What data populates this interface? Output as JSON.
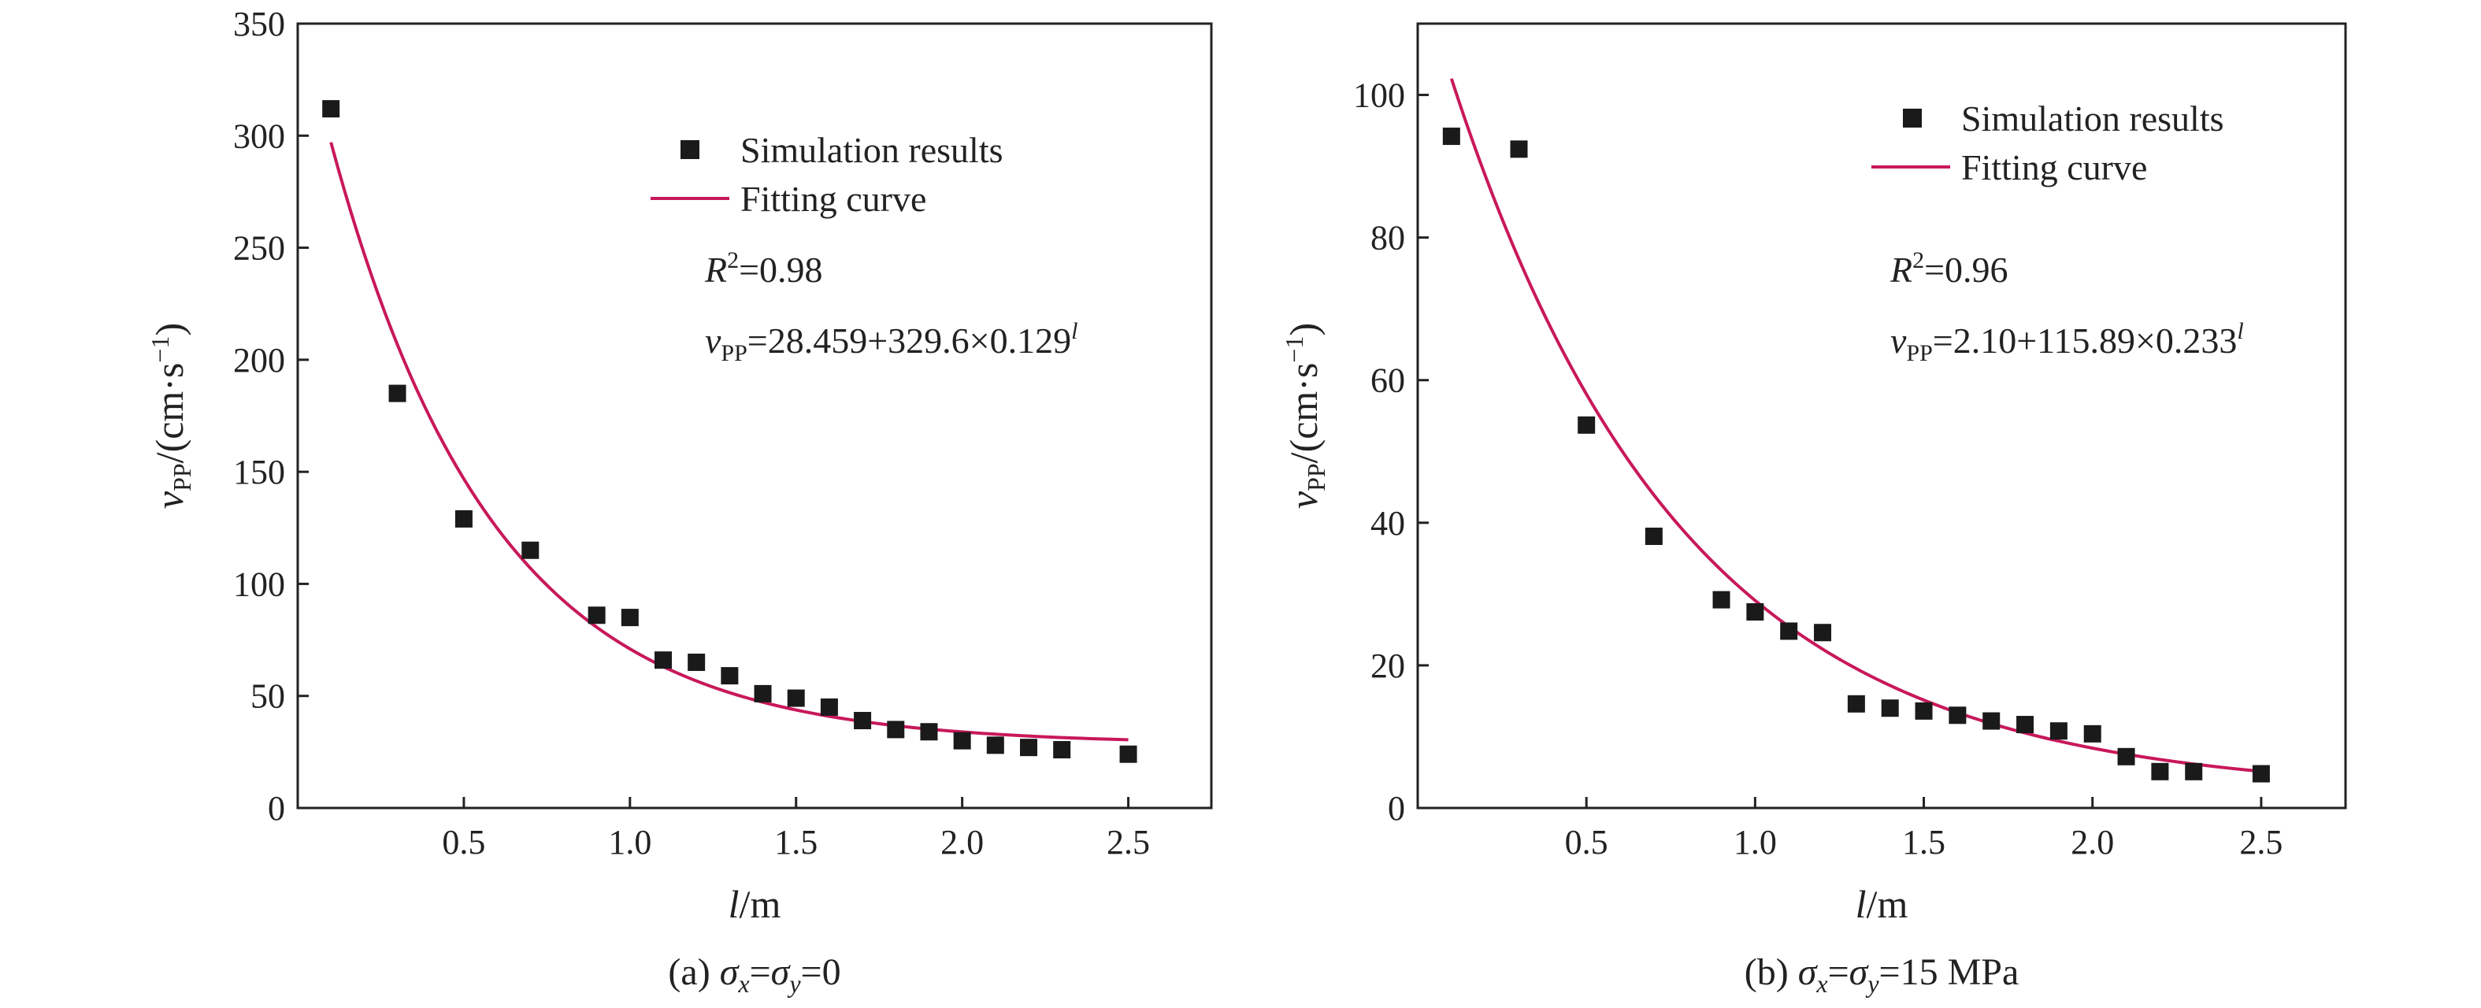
{
  "chart_data": [
    {
      "type": "scatter",
      "id": "a",
      "xlabel_var": "l",
      "xlabel_unit": "/m",
      "ylabel_var": "v",
      "ylabel_sub": "PP",
      "ylabel_unit": "/(cm·s",
      "ylabel_exp": "−1",
      "ylabel_close": ")",
      "xlim": [
        0,
        2.75
      ],
      "ylim": [
        0,
        350
      ],
      "xticks": [
        0.5,
        1.0,
        1.5,
        2.0,
        2.5
      ],
      "xtick_labels": [
        "0.5",
        "1.0",
        "1.5",
        "2.0",
        "2.5"
      ],
      "yticks": [
        0,
        50,
        100,
        150,
        200,
        250,
        300,
        350
      ],
      "ytick_labels": [
        "0",
        "50",
        "100",
        "150",
        "200",
        "250",
        "300",
        "350"
      ],
      "series": [
        {
          "name": "Simulation results",
          "kind": "points",
          "x": [
            0.1,
            0.3,
            0.5,
            0.7,
            0.9,
            1.0,
            1.1,
            1.2,
            1.3,
            1.4,
            1.5,
            1.6,
            1.7,
            1.8,
            1.9,
            2.0,
            2.1,
            2.2,
            2.3,
            2.5
          ],
          "y": [
            312,
            185,
            129,
            115,
            86,
            85,
            66,
            65,
            59,
            51,
            49,
            45,
            39,
            35,
            34,
            30,
            28,
            27,
            26,
            24
          ]
        },
        {
          "name": "Fitting curve",
          "kind": "line",
          "model": {
            "a": 28.459,
            "b": 329.6,
            "c": 0.129
          },
          "x_range": [
            0.1,
            2.5
          ]
        }
      ],
      "legend": {
        "points_label": "Simulation results",
        "line_label": "Fitting curve",
        "placement": "top-right"
      },
      "r2": {
        "var": "R",
        "exp": "2",
        "value": "=0.98"
      },
      "equation": {
        "var": "v",
        "sub": "PP",
        "rhs": "=28.459+329.6×0.129",
        "exp": "l"
      },
      "caption": {
        "prefix": "(a) ",
        "s1": "σ",
        "sub1": "x",
        "eq1": "=",
        "s2": "σ",
        "sub2": "y",
        "rest": "=0"
      }
    },
    {
      "type": "scatter",
      "id": "b",
      "xlabel_var": "l",
      "xlabel_unit": "/m",
      "ylabel_var": "v",
      "ylabel_sub": "PP",
      "ylabel_unit": "/(cm·s",
      "ylabel_exp": "−1",
      "ylabel_close": ")",
      "xlim": [
        0,
        2.75
      ],
      "ylim": [
        0,
        110
      ],
      "xticks": [
        0.5,
        1.0,
        1.5,
        2.0,
        2.5
      ],
      "xtick_labels": [
        "0.5",
        "1.0",
        "1.5",
        "2.0",
        "2.5"
      ],
      "yticks": [
        0,
        20,
        40,
        60,
        80,
        100
      ],
      "ytick_labels": [
        "0",
        "20",
        "40",
        "60",
        "80",
        "100"
      ],
      "series": [
        {
          "name": "Simulation results",
          "kind": "points",
          "x": [
            0.1,
            0.3,
            0.5,
            0.7,
            0.9,
            1.0,
            1.1,
            1.2,
            1.3,
            1.4,
            1.5,
            1.6,
            1.7,
            1.8,
            1.9,
            2.0,
            2.1,
            2.2,
            2.3,
            2.5
          ],
          "y": [
            94.2,
            92.4,
            53.7,
            38.1,
            29.2,
            27.5,
            24.8,
            24.6,
            14.6,
            14.0,
            13.6,
            13.0,
            12.2,
            11.7,
            10.8,
            10.4,
            7.2,
            5.1,
            5.1,
            4.8
          ]
        },
        {
          "name": "Fitting curve",
          "kind": "line",
          "model": {
            "a": 2.1,
            "b": 115.89,
            "c": 0.233
          },
          "x_range": [
            0.1,
            2.5
          ]
        }
      ],
      "legend": {
        "points_label": "Simulation results",
        "line_label": "Fitting curve",
        "placement": "top-right"
      },
      "r2": {
        "var": "R",
        "exp": "2",
        "value": "=0.96"
      },
      "equation": {
        "var": "v",
        "sub": "PP",
        "rhs": "=2.10+115.89×0.233",
        "exp": "l"
      },
      "caption": {
        "prefix": "(b) ",
        "s1": "σ",
        "sub1": "x",
        "eq1": "=",
        "s2": "σ",
        "sub2": "y",
        "rest": "=15 MPa"
      }
    }
  ],
  "colors": {
    "points": "#1a1a1a",
    "fit_line": "#c8185a",
    "axis": "#222222"
  }
}
